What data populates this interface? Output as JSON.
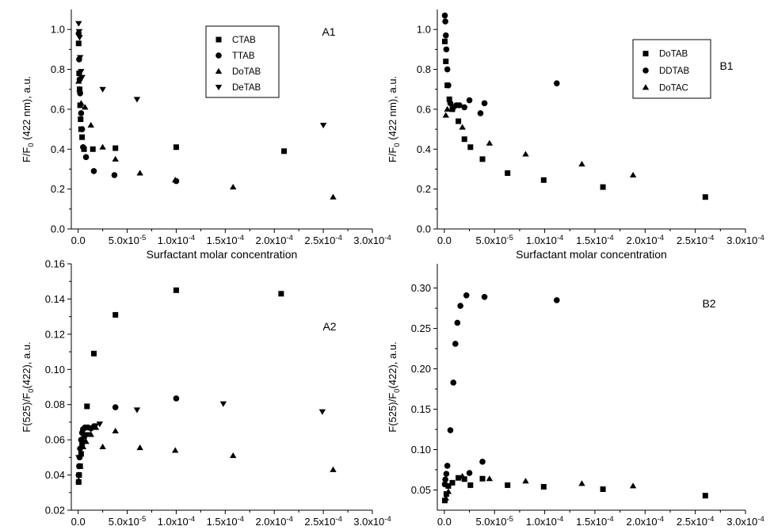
{
  "chart_data": [
    {
      "id": "A1",
      "panel_label": "A1",
      "type": "scatter",
      "ylabel_main": "F/F",
      "ylabel_sub": "0",
      "ylabel_tail": " (422 nm), a.u.",
      "xlabel": "Surfactant molar concentration",
      "xlim": [
        -7e-06,
        0.0003
      ],
      "ylim": [
        0.0,
        1.1
      ],
      "yticks": [
        0.0,
        0.2,
        0.4,
        0.6,
        0.8,
        1.0
      ],
      "ytick_labels": [
        "0.0",
        "0.2",
        "0.4",
        "0.6",
        "0.8",
        "1.0"
      ],
      "xticks": [
        0,
        5e-05,
        0.0001,
        0.00015,
        0.0002,
        0.00025,
        0.0003
      ],
      "xtick_labels": [
        {
          "m": "0.0",
          "e": ""
        },
        {
          "m": "5.0x10",
          "e": "-5"
        },
        {
          "m": "1.0x10",
          "e": "-4"
        },
        {
          "m": "1.5x10",
          "e": "-4"
        },
        {
          "m": "2.0x10",
          "e": "-4"
        },
        {
          "m": "2.5x10",
          "e": "-4"
        },
        {
          "m": "3.0x10",
          "e": "-4"
        }
      ],
      "legend_position": "top-center",
      "series": [
        {
          "name": "CTAB",
          "marker": "square",
          "points": [
            [
              5e-07,
              0.93
            ],
            [
              1e-06,
              0.78
            ],
            [
              1.5e-06,
              0.7
            ],
            [
              2e-06,
              0.62
            ],
            [
              2.5e-06,
              0.55
            ],
            [
              3e-06,
              0.5
            ],
            [
              4e-06,
              0.46
            ],
            [
              6e-06,
              0.4
            ],
            [
              1.5e-05,
              0.4
            ],
            [
              3.8e-05,
              0.405
            ],
            [
              0.0001,
              0.41
            ],
            [
              0.00021,
              0.39
            ]
          ]
        },
        {
          "name": "TTAB",
          "marker": "circle",
          "points": [
            [
              5e-07,
              0.98
            ],
            [
              1e-06,
              0.85
            ],
            [
              1.5e-06,
              0.75
            ],
            [
              2e-06,
              0.68
            ],
            [
              3e-06,
              0.58
            ],
            [
              4e-06,
              0.5
            ],
            [
              5e-06,
              0.41
            ],
            [
              8e-06,
              0.36
            ],
            [
              1.6e-05,
              0.29
            ],
            [
              3.7e-05,
              0.27
            ],
            [
              0.0001,
              0.24
            ]
          ]
        },
        {
          "name": "DoTAB",
          "marker": "triangle-up",
          "points": [
            [
              5e-07,
              0.74
            ],
            [
              1.5e-06,
              0.7
            ],
            [
              3e-06,
              0.63
            ],
            [
              7e-06,
              0.61
            ],
            [
              1.3e-05,
              0.52
            ],
            [
              2.5e-05,
              0.41
            ],
            [
              3.8e-05,
              0.35
            ],
            [
              6.3e-05,
              0.28
            ],
            [
              9.9e-05,
              0.245
            ],
            [
              0.000158,
              0.21
            ],
            [
              0.00026,
              0.16
            ]
          ]
        },
        {
          "name": "DeTAB",
          "marker": "triangle-down",
          "points": [
            [
              5e-07,
              1.03
            ],
            [
              1e-06,
              0.99
            ],
            [
              1.5e-06,
              0.96
            ],
            [
              2e-06,
              0.86
            ],
            [
              3e-06,
              0.79
            ],
            [
              4e-06,
              0.76
            ],
            [
              2.5e-05,
              0.7
            ],
            [
              6e-05,
              0.65
            ],
            [
              0.00025,
              0.52
            ]
          ]
        }
      ]
    },
    {
      "id": "B1",
      "panel_label": "B1",
      "type": "scatter",
      "ylabel_main": "F/F",
      "ylabel_sub": "0",
      "ylabel_tail": " (422 nm), a.u.",
      "xlabel": "Surfactant molar concentration",
      "xlim": [
        -7e-06,
        0.0003
      ],
      "ylim": [
        0.0,
        1.1
      ],
      "yticks": [
        0.0,
        0.2,
        0.4,
        0.6,
        0.8,
        1.0
      ],
      "ytick_labels": [
        "0.0",
        "0.2",
        "0.4",
        "0.6",
        "0.8",
        "1.0"
      ],
      "xticks": [
        0,
        5e-05,
        0.0001,
        0.00015,
        0.0002,
        0.00025,
        0.0003
      ],
      "xtick_labels": [
        {
          "m": "0.0",
          "e": ""
        },
        {
          "m": "5.0x10",
          "e": "-5"
        },
        {
          "m": "1.0x10",
          "e": "-4"
        },
        {
          "m": "1.5x10",
          "e": "-4"
        },
        {
          "m": "2.0x10",
          "e": "-4"
        },
        {
          "m": "2.5x10",
          "e": "-4"
        },
        {
          "m": "3.0x10",
          "e": "-4"
        }
      ],
      "legend_position": "top-right",
      "series": [
        {
          "name": "DoTAB",
          "marker": "square",
          "points": [
            [
              5e-07,
              0.94
            ],
            [
              1.5e-06,
              0.84
            ],
            [
              3e-06,
              0.72
            ],
            [
              5e-06,
              0.65
            ],
            [
              8e-06,
              0.6
            ],
            [
              1.4e-05,
              0.54
            ],
            [
              2e-05,
              0.45
            ],
            [
              2.6e-05,
              0.41
            ],
            [
              3.8e-05,
              0.35
            ],
            [
              6.3e-05,
              0.28
            ],
            [
              9.9e-05,
              0.245
            ],
            [
              0.000158,
              0.21
            ],
            [
              0.00026,
              0.16
            ]
          ]
        },
        {
          "name": "DDTAB",
          "marker": "circle",
          "points": [
            [
              5e-07,
              1.07
            ],
            [
              1e-06,
              1.04
            ],
            [
              1.5e-06,
              0.97
            ],
            [
              2e-06,
              0.9
            ],
            [
              3e-06,
              0.8
            ],
            [
              4e-06,
              0.72
            ],
            [
              6e-06,
              0.63
            ],
            [
              9e-06,
              0.61
            ],
            [
              1.2e-05,
              0.62
            ],
            [
              1.5e-05,
              0.62
            ],
            [
              2e-05,
              0.61
            ],
            [
              2.5e-05,
              0.645
            ],
            [
              3.6e-05,
              0.58
            ],
            [
              4e-05,
              0.63
            ],
            [
              0.000112,
              0.73
            ]
          ]
        },
        {
          "name": "DoTAC",
          "marker": "triangle-up",
          "points": [
            [
              1.5e-06,
              0.57
            ],
            [
              3e-06,
              0.6
            ],
            [
              1.8e-05,
              0.51
            ],
            [
              4.5e-05,
              0.43
            ],
            [
              8.1e-05,
              0.375
            ],
            [
              0.000137,
              0.325
            ],
            [
              0.000188,
              0.27
            ]
          ]
        }
      ]
    },
    {
      "id": "A2",
      "panel_label": "A2",
      "type": "scatter",
      "ylabel_main": "F(525)/F",
      "ylabel_sub": "0",
      "ylabel_tail": "(422), a.u.",
      "xlabel": "Surfactant molar concentration",
      "xlim": [
        -7e-06,
        0.0003
      ],
      "ylim": [
        0.02,
        0.16
      ],
      "yticks": [
        0.02,
        0.04,
        0.06,
        0.08,
        0.1,
        0.12,
        0.14,
        0.16
      ],
      "ytick_labels": [
        "0.02",
        "0.04",
        "0.06",
        "0.08",
        "0.10",
        "0.12",
        "0.14",
        "0.16"
      ],
      "xticks": [
        0,
        5e-05,
        0.0001,
        0.00015,
        0.0002,
        0.00025,
        0.0003
      ],
      "xtick_labels": [
        {
          "m": "0.0",
          "e": ""
        },
        {
          "m": "5.0x10",
          "e": "-5"
        },
        {
          "m": "1.0x10",
          "e": "-4"
        },
        {
          "m": "1.5x10",
          "e": "-4"
        },
        {
          "m": "2.0x10",
          "e": "-4"
        },
        {
          "m": "2.5x10",
          "e": "-4"
        },
        {
          "m": "3.0x10",
          "e": "-4"
        }
      ],
      "series": [
        {
          "name": "CTAB",
          "marker": "square",
          "points": [
            [
              5e-07,
              0.036
            ],
            [
              1e-06,
              0.04
            ],
            [
              2e-06,
              0.045
            ],
            [
              3e-06,
              0.052
            ],
            [
              4e-06,
              0.058
            ],
            [
              6e-06,
              0.062
            ],
            [
              9e-06,
              0.079
            ],
            [
              1.6e-05,
              0.109
            ],
            [
              3.8e-05,
              0.131
            ],
            [
              0.0001,
              0.145
            ],
            [
              0.000207,
              0.143
            ]
          ]
        },
        {
          "name": "TTAB",
          "marker": "circle",
          "points": [
            [
              5e-07,
              0.04
            ],
            [
              1e-06,
              0.045
            ],
            [
              1.5e-06,
              0.05
            ],
            [
              2e-06,
              0.055
            ],
            [
              3e-06,
              0.06
            ],
            [
              4e-06,
              0.064
            ],
            [
              5e-06,
              0.066
            ],
            [
              7e-06,
              0.067
            ],
            [
              1e-05,
              0.067
            ],
            [
              1.3e-05,
              0.0665
            ],
            [
              1.6e-05,
              0.0675
            ],
            [
              3.8e-05,
              0.0785
            ],
            [
              0.0001,
              0.0835
            ]
          ]
        },
        {
          "name": "DoTAB",
          "marker": "triangle-up",
          "points": [
            [
              5e-07,
              0.037
            ],
            [
              2e-06,
              0.045
            ],
            [
              5e-06,
              0.056
            ],
            [
              8e-06,
              0.059
            ],
            [
              1.3e-05,
              0.063
            ],
            [
              1.8e-05,
              0.067
            ],
            [
              2.5e-05,
              0.056
            ],
            [
              3.8e-05,
              0.065
            ],
            [
              6.3e-05,
              0.0555
            ],
            [
              9.9e-05,
              0.054
            ],
            [
              0.000158,
              0.051
            ],
            [
              0.00026,
              0.043
            ]
          ]
        },
        {
          "name": "DeTAB",
          "marker": "triangle-down",
          "points": [
            [
              5e-07,
              0.05
            ],
            [
              2e-06,
              0.054
            ],
            [
              5e-06,
              0.059
            ],
            [
              9e-06,
              0.063
            ],
            [
              1.3e-05,
              0.066
            ],
            [
              1.8e-05,
              0.068
            ],
            [
              2.2e-05,
              0.069
            ],
            [
              6e-05,
              0.077
            ],
            [
              0.000148,
              0.0805
            ],
            [
              0.000249,
              0.076
            ]
          ]
        }
      ]
    },
    {
      "id": "B2",
      "panel_label": "B2",
      "type": "scatter",
      "ylabel_main": "F(525)/F",
      "ylabel_sub": "0",
      "ylabel_tail": "(422), a.u.",
      "xlabel": "Surfactant molar concentration",
      "xlim": [
        -7e-06,
        0.0003
      ],
      "ylim": [
        0.025,
        0.33
      ],
      "yticks": [
        0.05,
        0.1,
        0.15,
        0.2,
        0.25,
        0.3
      ],
      "ytick_labels": [
        "0.05",
        "0.10",
        "0.15",
        "0.20",
        "0.25",
        "0.30"
      ],
      "xticks": [
        0,
        5e-05,
        0.0001,
        0.00015,
        0.0002,
        0.00025,
        0.0003
      ],
      "xtick_labels": [
        {
          "m": "0.0",
          "e": ""
        },
        {
          "m": "5.0x10",
          "e": "-5"
        },
        {
          "m": "1.0x10",
          "e": "-4"
        },
        {
          "m": "1.5x10",
          "e": "-4"
        },
        {
          "m": "2.0x10",
          "e": "-4"
        },
        {
          "m": "2.5x10",
          "e": "-4"
        },
        {
          "m": "3.0x10",
          "e": "-4"
        }
      ],
      "series": [
        {
          "name": "DoTAB",
          "marker": "square",
          "points": [
            [
              5e-07,
              0.037
            ],
            [
              2e-06,
              0.045
            ],
            [
              4e-06,
              0.055
            ],
            [
              8e-06,
              0.059
            ],
            [
              1.4e-05,
              0.065
            ],
            [
              2e-05,
              0.0635
            ],
            [
              2.6e-05,
              0.056
            ],
            [
              3.8e-05,
              0.064
            ],
            [
              6.3e-05,
              0.056
            ],
            [
              9.9e-05,
              0.054
            ],
            [
              0.000158,
              0.051
            ],
            [
              0.00026,
              0.043
            ]
          ]
        },
        {
          "name": "DDTAB",
          "marker": "circle",
          "points": [
            [
              5e-07,
              0.057
            ],
            [
              1e-06,
              0.063
            ],
            [
              2e-06,
              0.07
            ],
            [
              3e-06,
              0.08
            ],
            [
              6e-06,
              0.124
            ],
            [
              9e-06,
              0.183
            ],
            [
              1.1e-05,
              0.231
            ],
            [
              1.3e-05,
              0.257
            ],
            [
              1.6e-05,
              0.278
            ],
            [
              2.2e-05,
              0.291
            ],
            [
              2.5e-05,
              0.071
            ],
            [
              3.8e-05,
              0.085
            ],
            [
              4e-05,
              0.289
            ],
            [
              0.000112,
              0.285
            ]
          ]
        },
        {
          "name": "DoTAC",
          "marker": "triangle-up",
          "points": [
            [
              1.5e-06,
              0.04
            ],
            [
              4e-06,
              0.048
            ],
            [
              1.8e-05,
              0.067
            ],
            [
              4.5e-05,
              0.064
            ],
            [
              8.1e-05,
              0.061
            ],
            [
              0.000137,
              0.058
            ],
            [
              0.000188,
              0.055
            ]
          ]
        }
      ]
    }
  ]
}
